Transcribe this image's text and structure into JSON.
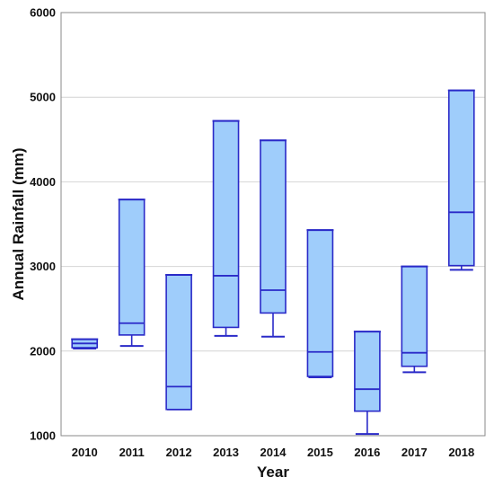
{
  "chart_data": {
    "type": "box",
    "title": "",
    "xlabel": "Year",
    "ylabel": "Annual Rainfall (mm)",
    "ylim": [
      1000,
      6000
    ],
    "yticks": [
      "1000",
      "2000",
      "3000",
      "4000",
      "5000",
      "6000"
    ],
    "grid": true,
    "categories": [
      "2010",
      "2011",
      "2012",
      "2013",
      "2014",
      "2015",
      "2016",
      "2017",
      "2018"
    ],
    "boxes": [
      {
        "min": 2030,
        "q1": 2040,
        "median": 2090,
        "q3": 2140,
        "max": 2140
      },
      {
        "min": 2060,
        "q1": 2190,
        "median": 2330,
        "q3": 3790,
        "max": 3790
      },
      {
        "min": 1310,
        "q1": 1310,
        "median": 1580,
        "q3": 2900,
        "max": 2900
      },
      {
        "min": 2180,
        "q1": 2280,
        "median": 2890,
        "q3": 4720,
        "max": 4720
      },
      {
        "min": 2170,
        "q1": 2450,
        "median": 2720,
        "q3": 4490,
        "max": 4490
      },
      {
        "min": 1690,
        "q1": 1700,
        "median": 1990,
        "q3": 3430,
        "max": 3430
      },
      {
        "min": 1020,
        "q1": 1290,
        "median": 1550,
        "q3": 2230,
        "max": 2230
      },
      {
        "min": 1750,
        "q1": 1820,
        "median": 1980,
        "q3": 3000,
        "max": 3000
      },
      {
        "min": 2960,
        "q1": 3010,
        "median": 3640,
        "q3": 5080,
        "max": 5080
      }
    ],
    "colors": {
      "box_fill": "#9fcdfb",
      "box_stroke": "#2a2ac8",
      "grid": "#d4d4d4",
      "axis": "#8a8a8a"
    }
  }
}
